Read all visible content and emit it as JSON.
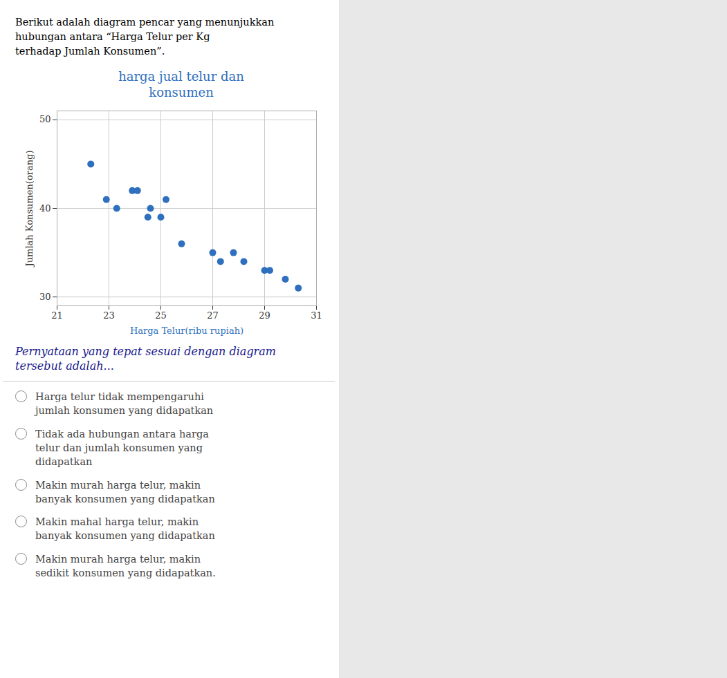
{
  "chart_data": {
    "type": "scatter",
    "title": "harga jual telur dan\nkonsumen",
    "x_label": "Harga Telur(ribu rupiah)",
    "y_label": "Jumlah Konsumen(orang)",
    "x": [
      22.3,
      22.9,
      23.3,
      23.9,
      24.1,
      24.5,
      24.6,
      25.0,
      25.2,
      25.8,
      27.0,
      27.3,
      27.8,
      28.2,
      29.0,
      29.2,
      29.8,
      30.3
    ],
    "values": [
      45,
      41,
      40,
      42,
      42,
      39,
      40,
      39,
      41,
      36,
      35,
      34,
      35,
      34,
      33,
      33,
      32,
      31
    ],
    "color": "#2e6fbe",
    "xlim": [
      21,
      31
    ],
    "ylim": [
      29,
      51
    ],
    "xticks": [
      21,
      23,
      25,
      27,
      29,
      31
    ],
    "yticks": [
      30,
      40,
      50
    ],
    "grid": true,
    "annotations": [
      "Berikut adalah diagram pencar yang menunjukkan hubungan antara “Harga Telur per Kg\nterhadap Jumlah Konsumen”.",
      "Pernyataan yang tepat sesuai dengan diagram tersebut adalah...",
      "Harga telur tidak mempengaruhi\njumlah konsumen yang didapatkan",
      "Tidak ada hubungan antara harga\ntelur dan jumlah konsumen yang\ndidapatkan",
      "Makin murah harga telur, makin\nbanyak konsumen yang didapatkan",
      "Makin mahal harga telur, makin\nbanyak konsumen yang didapatkan",
      "Makin murah harga telur, makin\nsedikit konsumen yang didapatkan."
    ]
  }
}
